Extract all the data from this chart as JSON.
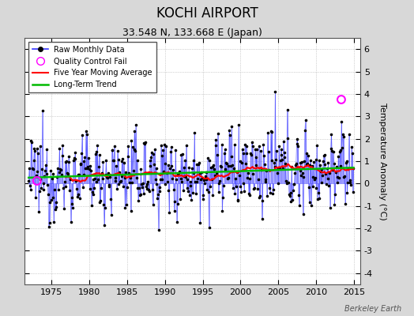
{
  "title": "KOCHI AIRPORT",
  "subtitle": "33.548 N, 133.668 E (Japan)",
  "ylabel": "Temperature Anomaly (°C)",
  "xlabel_years": [
    1975,
    1980,
    1985,
    1990,
    1995,
    2000,
    2005,
    2010,
    2015
  ],
  "yticks": [
    -4,
    -3,
    -2,
    -1,
    0,
    1,
    2,
    3,
    4,
    5,
    6
  ],
  "ylim": [
    -4.5,
    6.5
  ],
  "xlim_start": 1971.5,
  "xlim_end": 2015.8,
  "watermark": "Berkeley Earth",
  "line_color": "#3333ff",
  "stem_color": "#8888ff",
  "moving_avg_color": "#ff0000",
  "trend_color": "#00bb00",
  "qc_fail_color": "#ff00ff",
  "background_color": "#d8d8d8",
  "plot_bg_color": "#ffffff",
  "seed": 12345,
  "years_start": 1972,
  "years_end": 2014,
  "qc_points": [
    [
      1973.1,
      0.12
    ],
    [
      2013.3,
      3.75
    ]
  ]
}
